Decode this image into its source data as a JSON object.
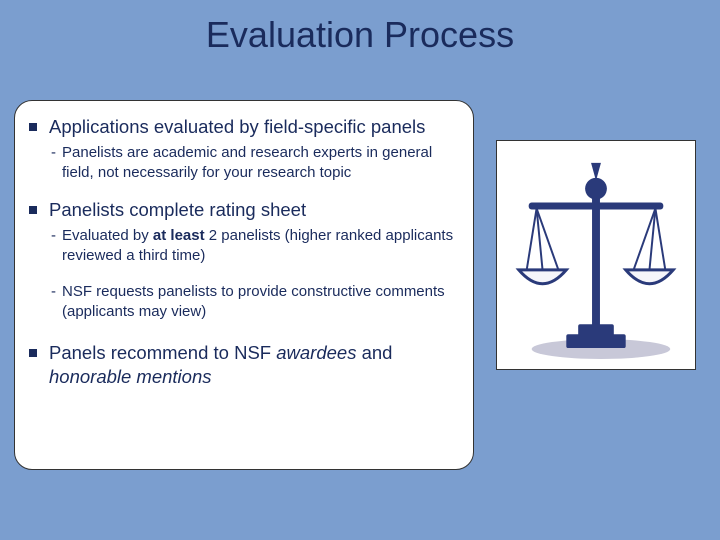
{
  "slide": {
    "background_color": "#7b9ecf",
    "title": {
      "text": "Evaluation Process",
      "color": "#1a2b5c",
      "fontsize": 36
    },
    "content_box": {
      "bg": "#ffffff",
      "border_radius": 18,
      "border_color": "#333333",
      "bullets": [
        {
          "text": "Applications evaluated by field-specific panels",
          "subs": [
            {
              "parts": [
                {
                  "t": "Panelists are academic and research experts in general field, not necessarily for your research topic"
                }
              ]
            }
          ]
        },
        {
          "text": "Panelists complete rating sheet",
          "subs": [
            {
              "parts": [
                {
                  "t": "Evaluated by "
                },
                {
                  "t": "at least",
                  "bold": true
                },
                {
                  "t": " 2 panelists (higher ranked applicants reviewed a third time)"
                }
              ]
            },
            {
              "parts": [
                {
                  "t": "NSF requests panelists to provide constructive comments (applicants may view)"
                }
              ]
            }
          ]
        },
        {
          "parts": [
            {
              "t": "Panels recommend to NSF "
            },
            {
              "t": "awardees",
              "italic": true
            },
            {
              "t": " and "
            },
            {
              "t": "honorable mentions",
              "italic": true
            }
          ],
          "subs": []
        }
      ],
      "bullet_color": "#1a2b5c",
      "text_color": "#1a2b5c",
      "bullet_fontsize": 18.5,
      "sub_fontsize": 15
    },
    "image_box": {
      "bg": "#ffffff",
      "border_color": "#333333",
      "icon": "scales-of-justice",
      "scales_color": "#2a3a7a",
      "shadow_color": "#c8c8d8"
    }
  }
}
